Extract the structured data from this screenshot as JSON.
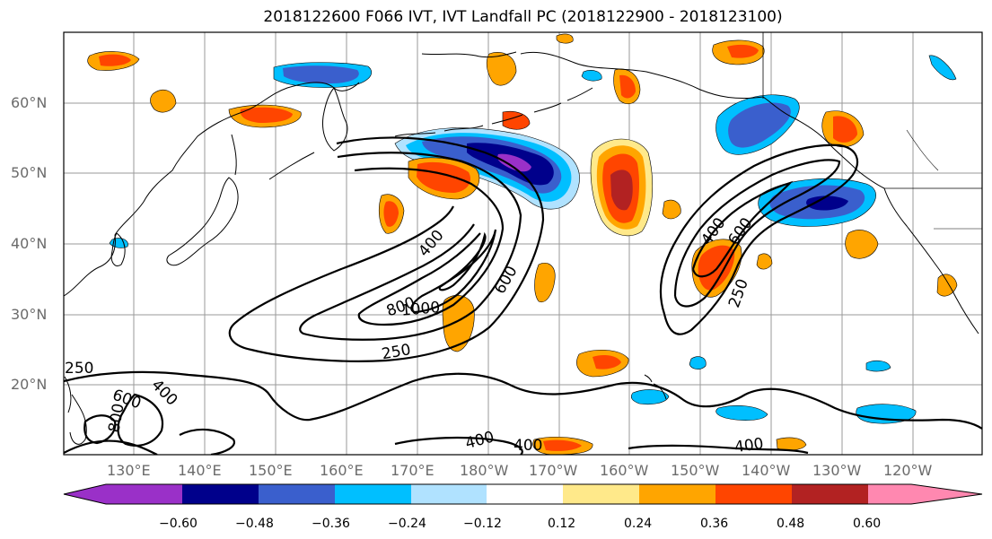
{
  "title": "2018122600 F066 IVT, IVT Landfall PC (2018122900 - 2018123100)",
  "lat_ticks": [
    "20°N",
    "30°N",
    "40°N",
    "50°N",
    "60°N"
  ],
  "lon_ticks": [
    "130°E",
    "140°E",
    "150°E",
    "160°E",
    "170°E",
    "180°W",
    "170°W",
    "160°W",
    "150°W",
    "140°W",
    "130°W",
    "120°W"
  ],
  "map_extent": {
    "lon_west": 120,
    "lon_east": 250,
    "lat_south": 10,
    "lat_north": 70
  },
  "contour_labels": {
    "west_jet": [
      "400",
      "800",
      "1000",
      "600",
      "250"
    ],
    "east_jet": [
      "400",
      "600",
      "250"
    ],
    "south": [
      "250",
      "600",
      "400",
      "800",
      "400",
      "400",
      "400"
    ]
  },
  "colorbar": {
    "ticks": [
      "−0.60",
      "−0.48",
      "−0.36",
      "−0.24",
      "−0.12",
      "0.12",
      "0.24",
      "0.36",
      "0.48",
      "0.60"
    ],
    "colors": [
      "#9a30c8",
      "#00008b",
      "#3a5fcd",
      "#00bfff",
      "#b0e2ff",
      "#ffffff",
      "#ffe98a",
      "#ffa500",
      "#ff4500",
      "#b22222",
      "#ff88b0"
    ]
  }
}
